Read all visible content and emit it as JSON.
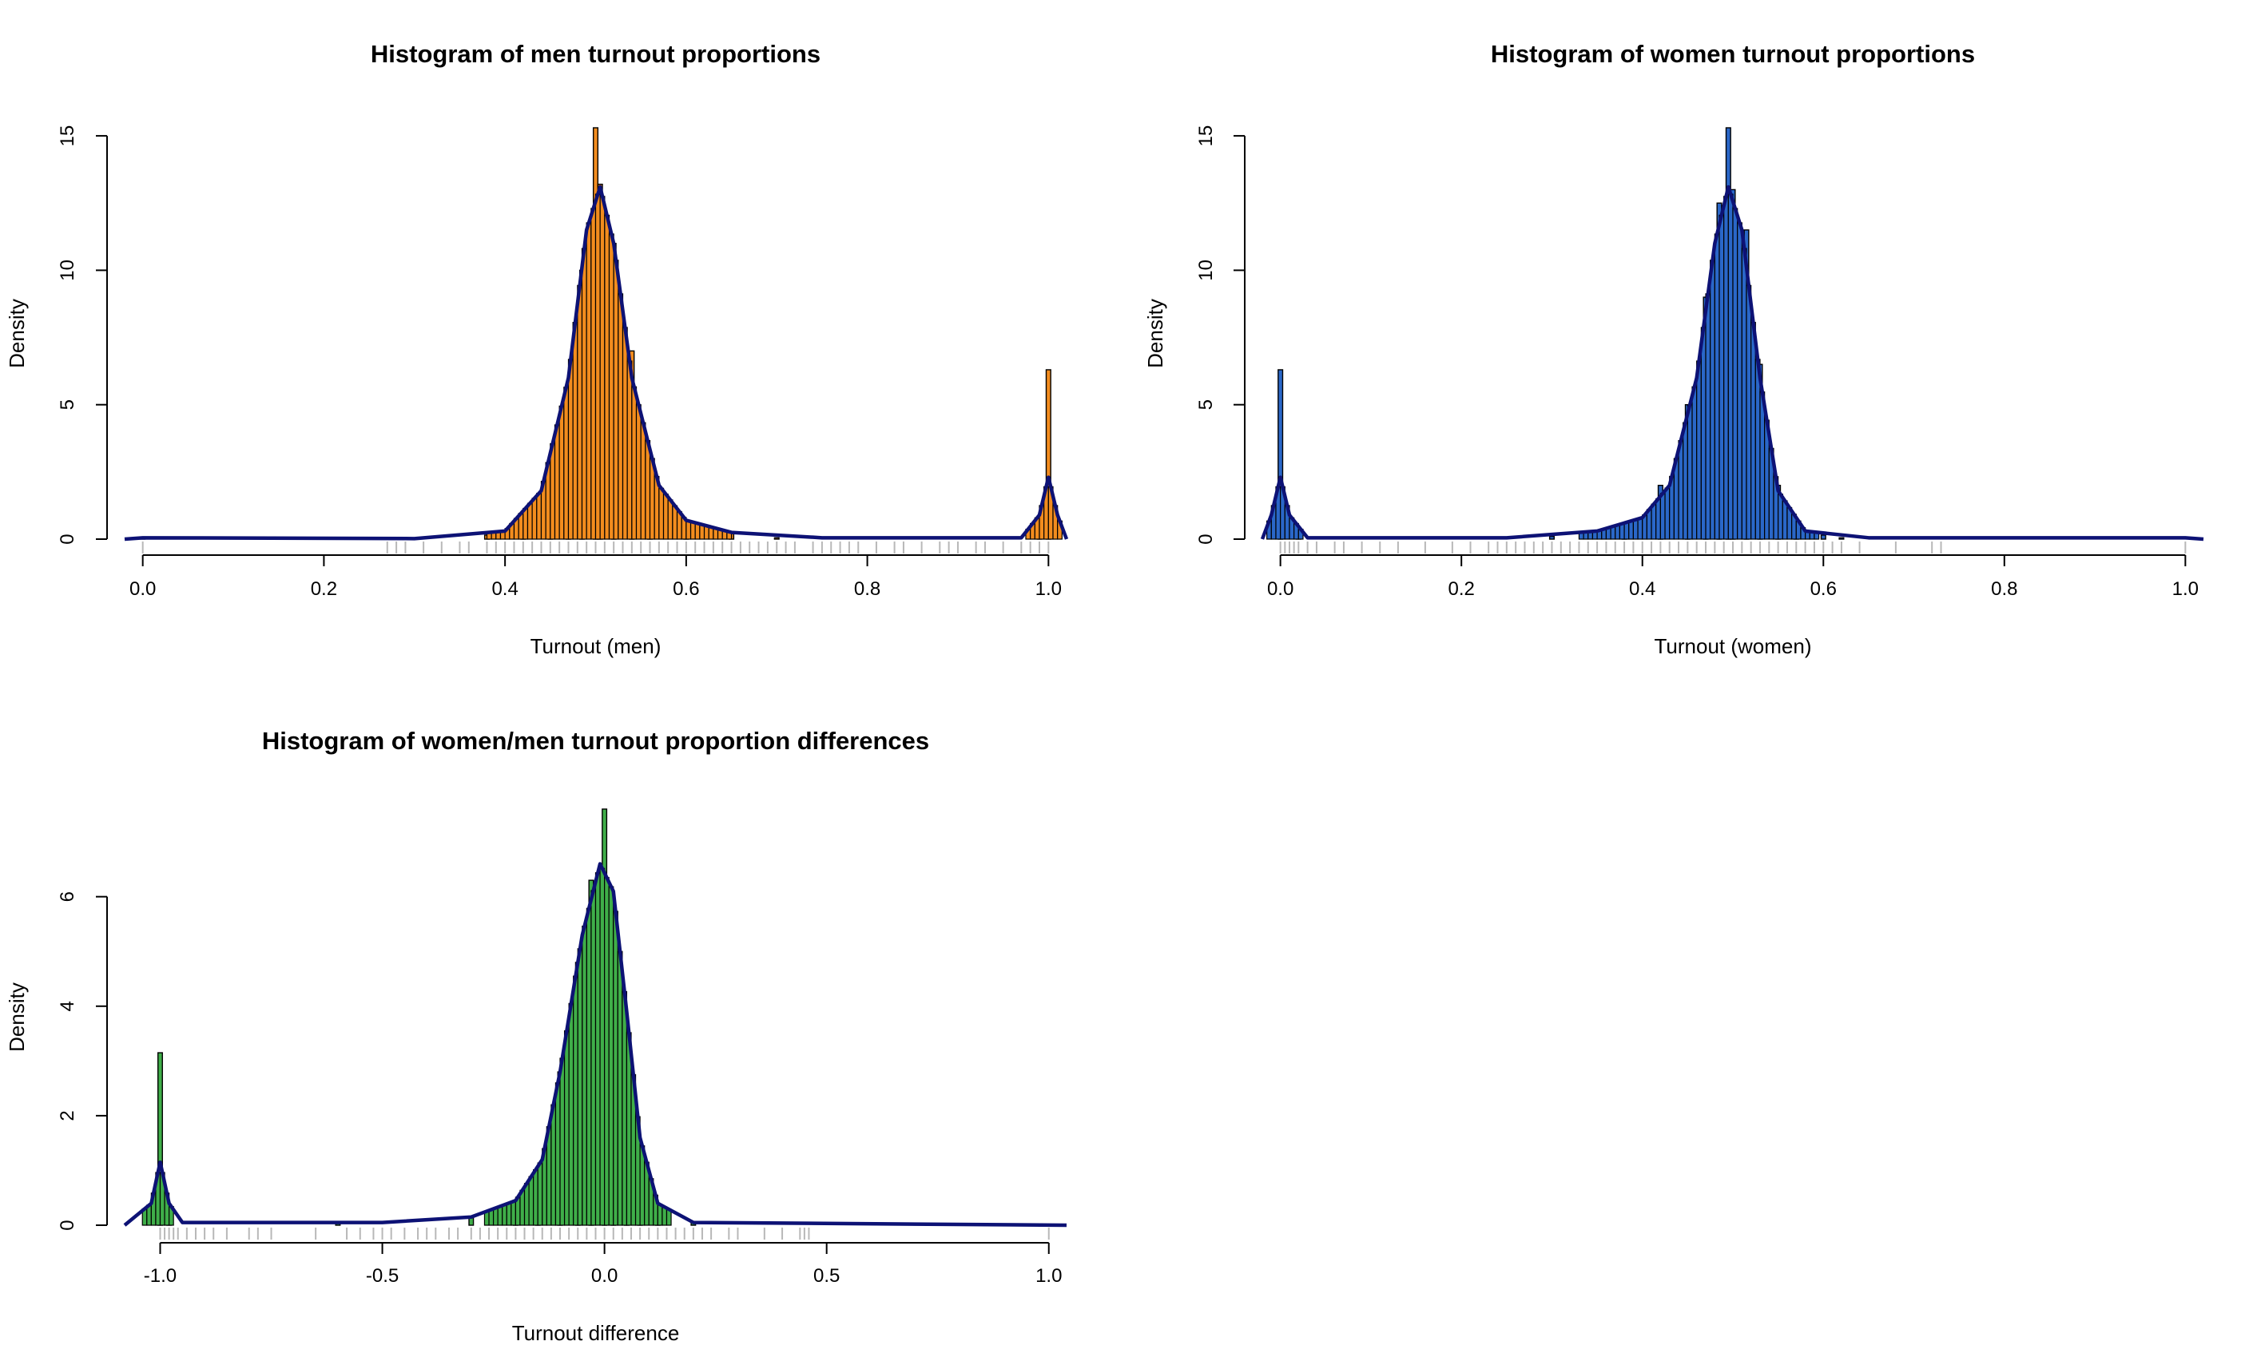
{
  "chart_data": [
    {
      "type": "bar",
      "title": "Histogram of men turnout proportions",
      "xlabel": "Turnout (men)",
      "ylabel": "Density",
      "xlim": [
        -0.02,
        1.02
      ],
      "ylim": [
        0,
        15.3
      ],
      "xticks": [
        "0.0",
        "0.2",
        "0.4",
        "0.6",
        "0.8",
        "1.0"
      ],
      "yticks": [
        "0",
        "5",
        "10",
        "15"
      ],
      "bin_width": 0.005,
      "fill_color": "#F28C1E",
      "density_color": "#0D1275",
      "rug_color": "#B8B8B8",
      "histogram": [
        {
          "x": 0.0,
          "y": 0.02
        },
        {
          "x": 0.38,
          "y": 0.15
        },
        {
          "x": 0.42,
          "y": 0.6
        },
        {
          "x": 0.45,
          "y": 2.0
        },
        {
          "x": 0.47,
          "y": 5.5
        },
        {
          "x": 0.485,
          "y": 10.0
        },
        {
          "x": 0.5,
          "y": 15.3
        },
        {
          "x": 0.505,
          "y": 13.2
        },
        {
          "x": 0.52,
          "y": 11.0
        },
        {
          "x": 0.54,
          "y": 7.0
        },
        {
          "x": 0.56,
          "y": 2.5
        },
        {
          "x": 0.6,
          "y": 0.6
        },
        {
          "x": 0.65,
          "y": 0.2
        },
        {
          "x": 0.7,
          "y": 0.05
        },
        {
          "x": 0.99,
          "y": 0.2
        },
        {
          "x": 1.0,
          "y": 6.3
        }
      ],
      "density": [
        {
          "x": -0.02,
          "y": 0.0
        },
        {
          "x": 0.0,
          "y": 0.05
        },
        {
          "x": 0.3,
          "y": 0.02
        },
        {
          "x": 0.4,
          "y": 0.3
        },
        {
          "x": 0.44,
          "y": 1.8
        },
        {
          "x": 0.47,
          "y": 6.0
        },
        {
          "x": 0.49,
          "y": 11.5
        },
        {
          "x": 0.505,
          "y": 13.1
        },
        {
          "x": 0.52,
          "y": 11.0
        },
        {
          "x": 0.54,
          "y": 6.0
        },
        {
          "x": 0.57,
          "y": 2.0
        },
        {
          "x": 0.6,
          "y": 0.7
        },
        {
          "x": 0.65,
          "y": 0.25
        },
        {
          "x": 0.75,
          "y": 0.05
        },
        {
          "x": 0.97,
          "y": 0.05
        },
        {
          "x": 0.99,
          "y": 0.9
        },
        {
          "x": 1.0,
          "y": 2.3
        },
        {
          "x": 1.01,
          "y": 0.9
        },
        {
          "x": 1.02,
          "y": 0.0
        }
      ]
    },
    {
      "type": "bar",
      "title": "Histogram of women turnout proportions",
      "xlabel": "Turnout (women)",
      "ylabel": "Density",
      "xlim": [
        -0.02,
        1.02
      ],
      "ylim": [
        0,
        15.3
      ],
      "xticks": [
        "0.0",
        "0.2",
        "0.4",
        "0.6",
        "0.8",
        "1.0"
      ],
      "yticks": [
        "0",
        "5",
        "10",
        "15"
      ],
      "bin_width": 0.005,
      "fill_color": "#2A67C8",
      "density_color": "#0D1275",
      "rug_color": "#B8B8B8",
      "histogram": [
        {
          "x": 0.0,
          "y": 6.3
        },
        {
          "x": 0.02,
          "y": 0.1
        },
        {
          "x": 0.3,
          "y": 0.1
        },
        {
          "x": 0.38,
          "y": 0.6
        },
        {
          "x": 0.42,
          "y": 2.0
        },
        {
          "x": 0.45,
          "y": 5.0
        },
        {
          "x": 0.47,
          "y": 9.0
        },
        {
          "x": 0.485,
          "y": 12.5
        },
        {
          "x": 0.495,
          "y": 15.3
        },
        {
          "x": 0.5,
          "y": 13.0
        },
        {
          "x": 0.515,
          "y": 11.5
        },
        {
          "x": 0.53,
          "y": 6.5
        },
        {
          "x": 0.55,
          "y": 2.0
        },
        {
          "x": 0.57,
          "y": 0.6
        },
        {
          "x": 0.6,
          "y": 0.15
        },
        {
          "x": 0.62,
          "y": 0.05
        }
      ],
      "density": [
        {
          "x": -0.02,
          "y": 0.0
        },
        {
          "x": -0.01,
          "y": 0.9
        },
        {
          "x": 0.0,
          "y": 2.3
        },
        {
          "x": 0.01,
          "y": 0.9
        },
        {
          "x": 0.03,
          "y": 0.05
        },
        {
          "x": 0.25,
          "y": 0.05
        },
        {
          "x": 0.35,
          "y": 0.3
        },
        {
          "x": 0.4,
          "y": 0.8
        },
        {
          "x": 0.43,
          "y": 2.0
        },
        {
          "x": 0.46,
          "y": 6.0
        },
        {
          "x": 0.48,
          "y": 11.0
        },
        {
          "x": 0.495,
          "y": 13.1
        },
        {
          "x": 0.51,
          "y": 11.5
        },
        {
          "x": 0.53,
          "y": 6.0
        },
        {
          "x": 0.55,
          "y": 1.8
        },
        {
          "x": 0.58,
          "y": 0.3
        },
        {
          "x": 0.65,
          "y": 0.05
        },
        {
          "x": 1.0,
          "y": 0.05
        },
        {
          "x": 1.02,
          "y": 0.0
        }
      ]
    },
    {
      "type": "bar",
      "title": "Histogram of women/men turnout proportion differences",
      "xlabel": "Turnout difference",
      "ylabel": "Density",
      "xlim": [
        -1.08,
        1.04
      ],
      "ylim": [
        0,
        7.6
      ],
      "xticks": [
        "-1.0",
        "-0.5",
        "0.0",
        "0.5",
        "1.0"
      ],
      "yticks": [
        "0",
        "2",
        "4",
        "6"
      ],
      "bin_width": 0.01,
      "fill_color": "#3FAE49",
      "density_color": "#0D1275",
      "rug_color": "#B8B8B8",
      "histogram": [
        {
          "x": -1.0,
          "y": 3.15
        },
        {
          "x": -0.98,
          "y": 0.05
        },
        {
          "x": -0.6,
          "y": 0.03
        },
        {
          "x": -0.3,
          "y": 0.15
        },
        {
          "x": -0.2,
          "y": 0.4
        },
        {
          "x": -0.15,
          "y": 1.0
        },
        {
          "x": -0.1,
          "y": 2.8
        },
        {
          "x": -0.06,
          "y": 4.8
        },
        {
          "x": -0.03,
          "y": 6.3
        },
        {
          "x": 0.0,
          "y": 7.6
        },
        {
          "x": 0.02,
          "y": 5.8
        },
        {
          "x": 0.05,
          "y": 3.5
        },
        {
          "x": 0.08,
          "y": 1.2
        },
        {
          "x": 0.12,
          "y": 0.3
        },
        {
          "x": 0.2,
          "y": 0.05
        }
      ],
      "density": [
        {
          "x": -1.08,
          "y": 0.0
        },
        {
          "x": -1.02,
          "y": 0.4
        },
        {
          "x": -1.0,
          "y": 1.15
        },
        {
          "x": -0.98,
          "y": 0.4
        },
        {
          "x": -0.95,
          "y": 0.05
        },
        {
          "x": -0.5,
          "y": 0.05
        },
        {
          "x": -0.3,
          "y": 0.15
        },
        {
          "x": -0.2,
          "y": 0.45
        },
        {
          "x": -0.14,
          "y": 1.2
        },
        {
          "x": -0.1,
          "y": 2.8
        },
        {
          "x": -0.05,
          "y": 5.3
        },
        {
          "x": -0.01,
          "y": 6.6
        },
        {
          "x": 0.02,
          "y": 6.1
        },
        {
          "x": 0.05,
          "y": 3.9
        },
        {
          "x": 0.08,
          "y": 1.6
        },
        {
          "x": 0.12,
          "y": 0.4
        },
        {
          "x": 0.2,
          "y": 0.05
        },
        {
          "x": 1.04,
          "y": 0.0
        }
      ]
    }
  ]
}
